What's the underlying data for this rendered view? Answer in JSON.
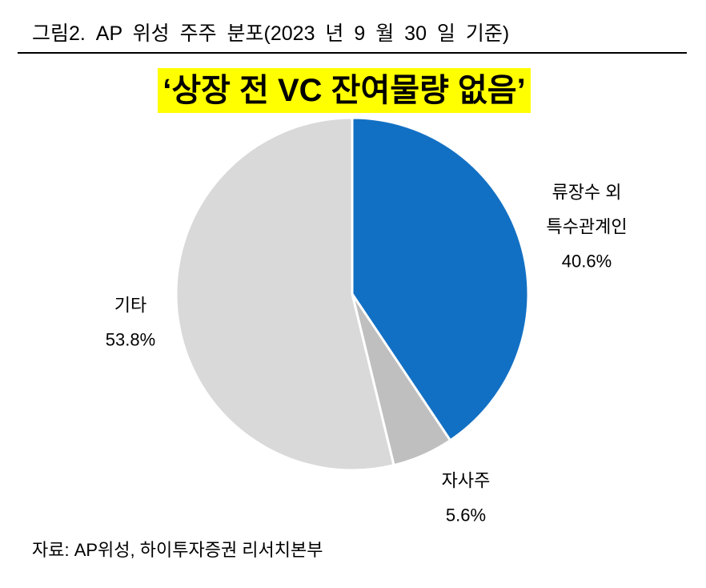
{
  "colors": {
    "subtitle_highlight": "#FFFF00",
    "separator": "#FFFFFF"
  },
  "chart_data": {
    "type": "pie",
    "title": "그림2. AP 위성 주주 분포(2023 년 9 월 30 일 기준)",
    "subtitle": "‘상장 전 VC 잔여물량 없음’",
    "source": "자료: AP위성, 하이투자증권 리서치본부",
    "slices": [
      {
        "label": [
          "류장수 외",
          "특수관계인"
        ],
        "value": 40.6,
        "value_label": "40.6%",
        "color": "#1270C4"
      },
      {
        "label": [
          "자사주"
        ],
        "value": 5.6,
        "value_label": "5.6%",
        "color": "#BFBFBF"
      },
      {
        "label": [
          "기타"
        ],
        "value": 53.8,
        "value_label": "53.8%",
        "color": "#D9D9D9"
      }
    ]
  }
}
